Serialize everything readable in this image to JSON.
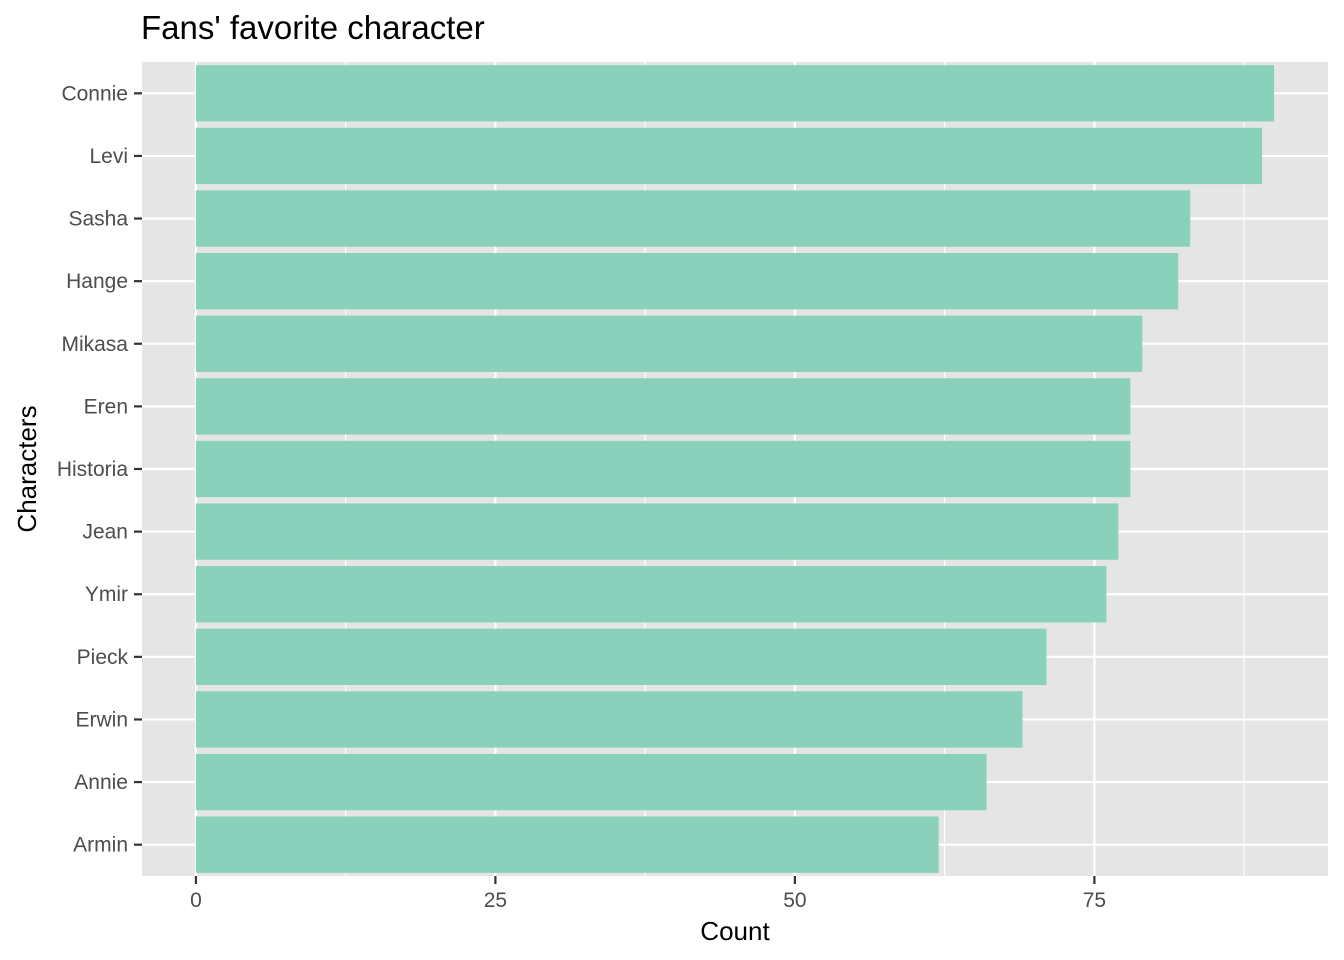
{
  "chart_data": {
    "type": "bar",
    "orientation": "horizontal",
    "title": "Fans' favorite character",
    "xlabel": "Count",
    "ylabel": "Characters",
    "categories": [
      "Connie",
      "Levi",
      "Sasha",
      "Hange",
      "Mikasa",
      "Eren",
      "Historia",
      "Jean",
      "Ymir",
      "Pieck",
      "Erwin",
      "Annie",
      "Armin"
    ],
    "values": [
      90,
      89,
      83,
      82,
      79,
      78,
      78,
      77,
      76,
      71,
      69,
      66,
      62
    ],
    "xlim": [
      -4.5,
      94.5
    ],
    "xticks": [
      0,
      25,
      50,
      75
    ],
    "xtick_labels": [
      "0",
      "25",
      "50",
      "75"
    ],
    "grid": true,
    "legend": "none",
    "bar_color": "#8ad1bb",
    "panel_background": "#e5e5e5",
    "grid_color": "#ffffff"
  }
}
